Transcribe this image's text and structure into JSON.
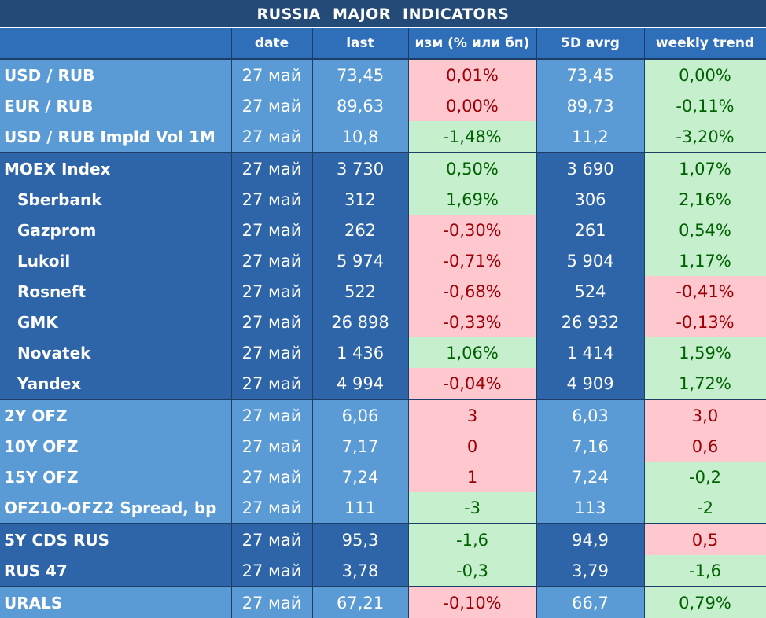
{
  "title": "RUSSIA   MAJOR   INDICATORS",
  "headers": [
    "",
    "date",
    "last",
    "изм (% или бп)",
    "5D avrg",
    "weekly trend"
  ],
  "rows": [
    {
      "name": "USD / RUB",
      "date": "27 май",
      "last": "73,45",
      "chg": "0,01%",
      "chg_dir": "neg",
      "avg": "73,45",
      "trend": "0,00%",
      "trend_dir": "pos",
      "shade": "light",
      "group_start": false,
      "sub": false
    },
    {
      "name": "EUR / RUB",
      "date": "27 май",
      "last": "89,63",
      "chg": "0,00%",
      "chg_dir": "neg",
      "avg": "89,73",
      "trend": "-0,11%",
      "trend_dir": "pos",
      "shade": "light",
      "group_start": false,
      "sub": false
    },
    {
      "name": "USD / RUB Impld Vol 1M",
      "date": "27 май",
      "last": "10,8",
      "chg": "-1,48%",
      "chg_dir": "pos",
      "avg": "11,2",
      "trend": "-3,20%",
      "trend_dir": "pos",
      "shade": "light",
      "group_start": false,
      "sub": false
    },
    {
      "name": "MOEX Index",
      "date": "27 май",
      "last": "3 730",
      "chg": "0,50%",
      "chg_dir": "pos",
      "avg": "3 690",
      "trend": "1,07%",
      "trend_dir": "pos",
      "shade": "dark",
      "group_start": true,
      "sub": false
    },
    {
      "name": "Sberbank",
      "date": "27 май",
      "last": "312",
      "chg": "1,69%",
      "chg_dir": "pos",
      "avg": "306",
      "trend": "2,16%",
      "trend_dir": "pos",
      "shade": "dark",
      "group_start": false,
      "sub": true
    },
    {
      "name": "Gazprom",
      "date": "27 май",
      "last": "262",
      "chg": "-0,30%",
      "chg_dir": "neg",
      "avg": "261",
      "trend": "0,54%",
      "trend_dir": "pos",
      "shade": "dark",
      "group_start": false,
      "sub": true
    },
    {
      "name": "Lukoil",
      "date": "27 май",
      "last": "5 974",
      "chg": "-0,71%",
      "chg_dir": "neg",
      "avg": "5 904",
      "trend": "1,17%",
      "trend_dir": "pos",
      "shade": "dark",
      "group_start": false,
      "sub": true
    },
    {
      "name": "Rosneft",
      "date": "27 май",
      "last": "522",
      "chg": "-0,68%",
      "chg_dir": "neg",
      "avg": "524",
      "trend": "-0,41%",
      "trend_dir": "neg",
      "shade": "dark",
      "group_start": false,
      "sub": true
    },
    {
      "name": "GMK",
      "date": "27 май",
      "last": "26 898",
      "chg": "-0,33%",
      "chg_dir": "neg",
      "avg": "26 932",
      "trend": "-0,13%",
      "trend_dir": "neg",
      "shade": "dark",
      "group_start": false,
      "sub": true
    },
    {
      "name": "Novatek",
      "date": "27 май",
      "last": "1 436",
      "chg": "1,06%",
      "chg_dir": "pos",
      "avg": "1 414",
      "trend": "1,59%",
      "trend_dir": "pos",
      "shade": "dark",
      "group_start": false,
      "sub": true
    },
    {
      "name": "Yandex",
      "date": "27 май",
      "last": "4 994",
      "chg": "-0,04%",
      "chg_dir": "neg",
      "avg": "4 909",
      "trend": "1,72%",
      "trend_dir": "pos",
      "shade": "dark",
      "group_start": false,
      "sub": true
    },
    {
      "name": "2Y OFZ",
      "date": "27 май",
      "last": "6,06",
      "chg": "3",
      "chg_dir": "neg",
      "avg": "6,03",
      "trend": "3,0",
      "trend_dir": "neg",
      "shade": "light",
      "group_start": true,
      "sub": false
    },
    {
      "name": "10Y OFZ",
      "date": "27 май",
      "last": "7,17",
      "chg": "0",
      "chg_dir": "neg",
      "avg": "7,16",
      "trend": "0,6",
      "trend_dir": "neg",
      "shade": "light",
      "group_start": false,
      "sub": false
    },
    {
      "name": "15Y OFZ",
      "date": "27 май",
      "last": "7,24",
      "chg": "1",
      "chg_dir": "neg",
      "avg": "7,24",
      "trend": "-0,2",
      "trend_dir": "pos",
      "shade": "light",
      "group_start": false,
      "sub": false
    },
    {
      "name": "OFZ10-OFZ2 Spread, bp",
      "date": "27 май",
      "last": "111",
      "chg": "-3",
      "chg_dir": "pos",
      "avg": "113",
      "trend": "-2",
      "trend_dir": "pos",
      "shade": "light",
      "group_start": false,
      "sub": false
    },
    {
      "name": "5Y CDS RUS",
      "date": "27 май",
      "last": "95,3",
      "chg": "-1,6",
      "chg_dir": "pos",
      "avg": "94,9",
      "trend": "0,5",
      "trend_dir": "neg",
      "shade": "dark",
      "group_start": true,
      "sub": false
    },
    {
      "name": "RUS 47",
      "date": "27 май",
      "last": "3,78",
      "chg": "-0,3",
      "chg_dir": "pos",
      "avg": "3,79",
      "trend": "-1,6",
      "trend_dir": "pos",
      "shade": "dark",
      "group_start": false,
      "sub": false
    },
    {
      "name": "URALS",
      "date": "27 май",
      "last": "67,21",
      "chg": "-0,10%",
      "chg_dir": "neg",
      "avg": "66,7",
      "trend": "0,79%",
      "trend_dir": "pos",
      "shade": "light",
      "group_start": true,
      "sub": false
    }
  ],
  "colors": {
    "title_bg": "#244a78",
    "header_bg": "#2f6eb8",
    "light_row": "#5b9bd5",
    "dark_row": "#2e64a8",
    "positive_bg": "#c6efce",
    "positive_text": "#006100",
    "negative_bg": "#ffc7ce",
    "negative_text": "#9c0006"
  }
}
